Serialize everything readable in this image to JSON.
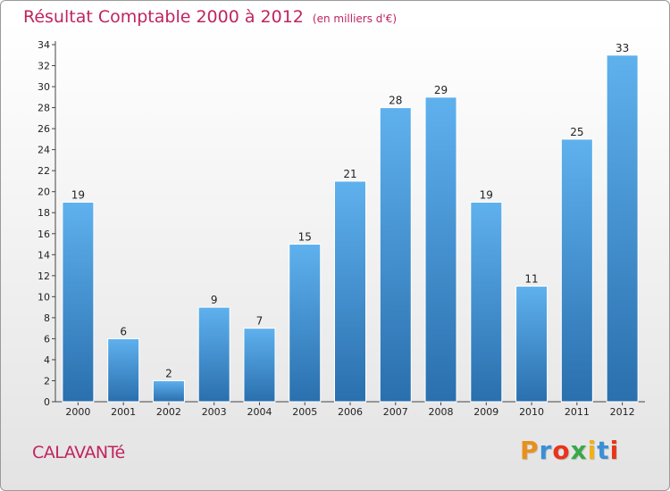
{
  "title": "Résultat Comptable 2000 à 2012",
  "unit": "(en milliers d'€)",
  "commune": "CALAVANTé",
  "brand": {
    "letters": [
      "P",
      "r",
      "o",
      "x",
      "i",
      "t",
      "i"
    ],
    "colors": [
      "#e8901c",
      "#3a8fd6",
      "#e8341c",
      "#3aa84a",
      "#f0b01c",
      "#3a8fd6",
      "#e8341c"
    ]
  },
  "colors": {
    "bar": "#3d8fd3",
    "bar_light": "#5fb1ee",
    "bar_dark": "#2a6fae",
    "title": "#c0245f"
  },
  "chart_data": {
    "type": "bar",
    "title": "Résultat Comptable 2000 à 2012",
    "subtitle": "(en milliers d'€)",
    "categories": [
      "2000",
      "2001",
      "2002",
      "2003",
      "2004",
      "2005",
      "2006",
      "2007",
      "2008",
      "2009",
      "2010",
      "2011",
      "2012"
    ],
    "values": [
      19,
      6,
      2,
      9,
      7,
      15,
      21,
      28,
      29,
      19,
      11,
      25,
      33
    ],
    "ylim": [
      0,
      34
    ],
    "yticks": [
      0,
      2,
      4,
      6,
      8,
      10,
      12,
      14,
      16,
      18,
      20,
      22,
      24,
      26,
      28,
      30,
      32,
      34
    ],
    "xlabel": "",
    "ylabel": "",
    "grid": false
  }
}
